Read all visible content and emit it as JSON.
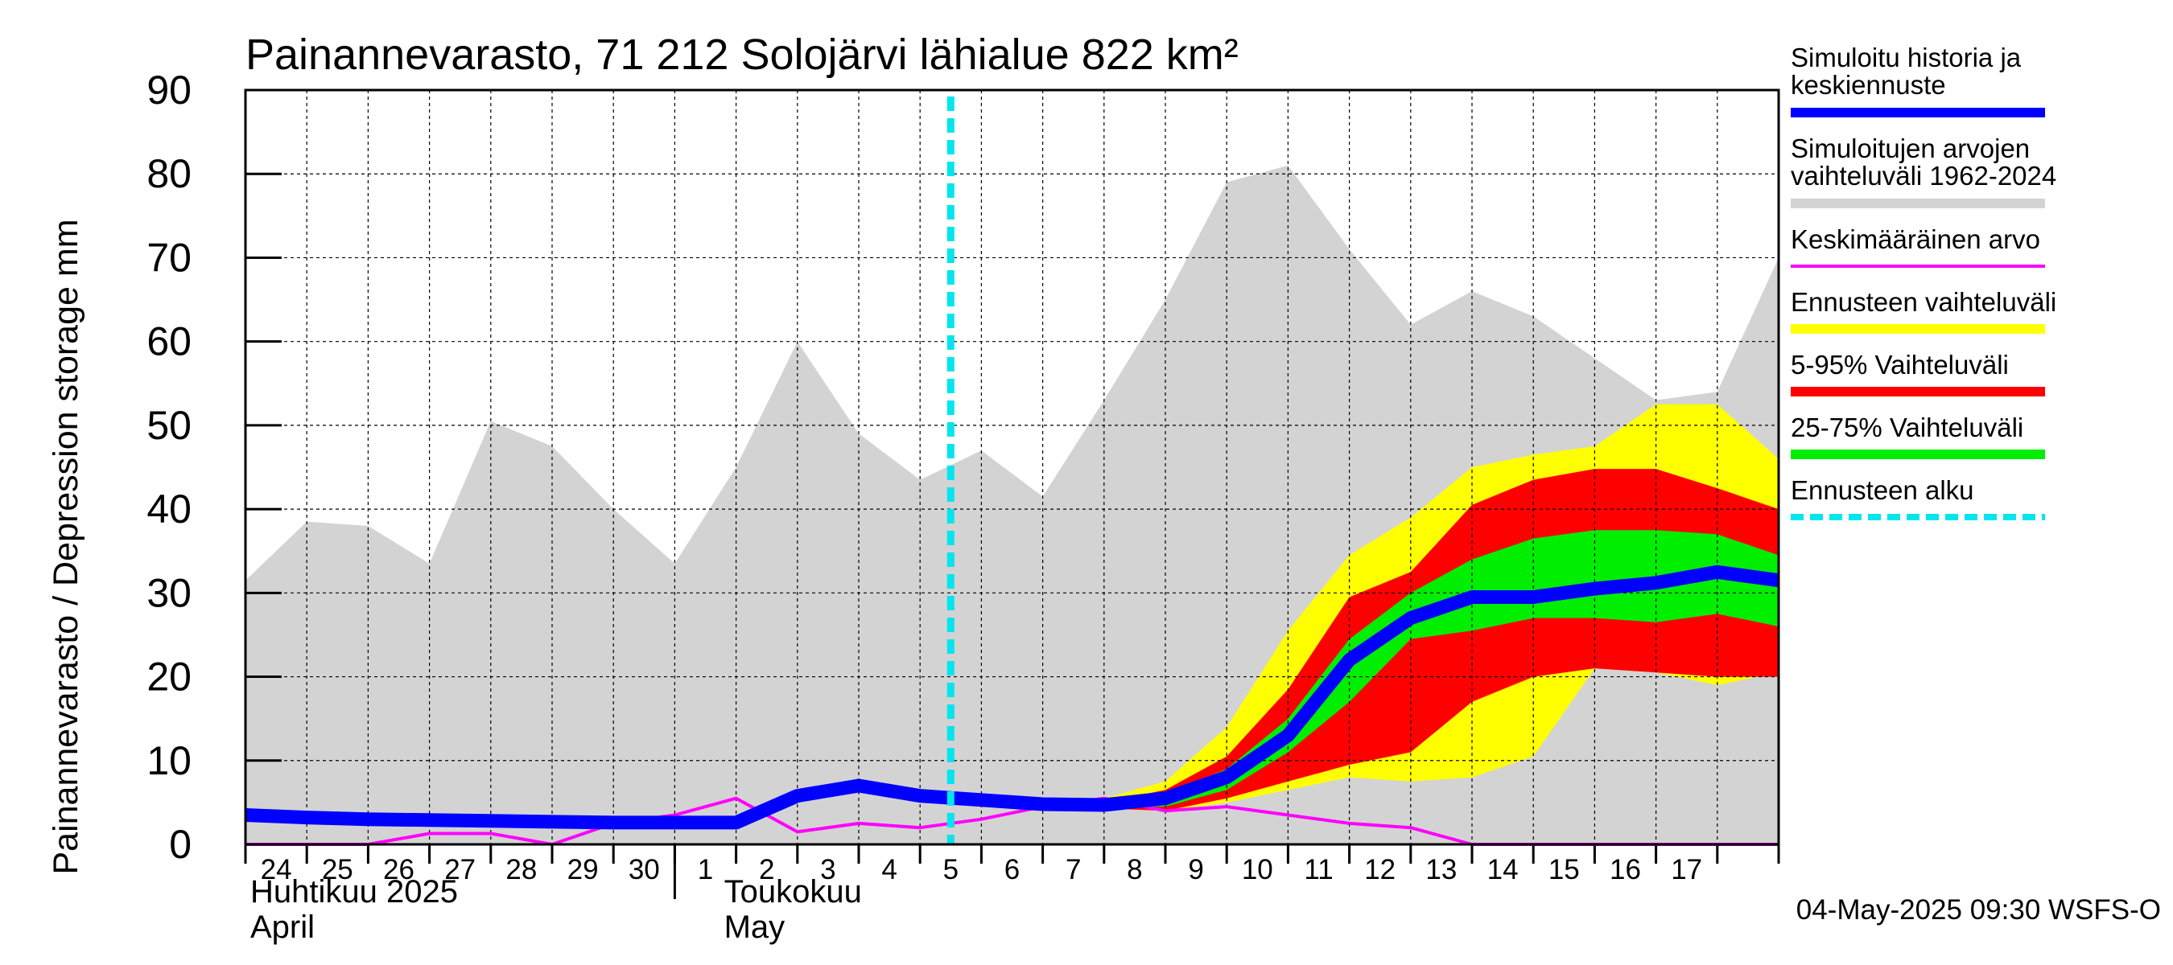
{
  "chart_data": {
    "type": "area",
    "title": "Painannevarasto, 71 212 Solojärvi lähialue 822 km²",
    "ylabel": "Painannevarasto / Depression storage    mm",
    "ylim": [
      0,
      90
    ],
    "yticks": [
      "0",
      "10",
      "20",
      "30",
      "40",
      "50",
      "60",
      "70",
      "80",
      "90"
    ],
    "x_tick_labels": [
      "24",
      "25",
      "26",
      "27",
      "28",
      "29",
      "30",
      "1",
      "2",
      "3",
      "4",
      "5",
      "6",
      "7",
      "8",
      "9",
      "10",
      "11",
      "12",
      "13",
      "14",
      "15",
      "16",
      "17"
    ],
    "month_labels": [
      {
        "fi": "Huhtikuu  2025",
        "en": "April"
      },
      {
        "fi": "Toukokuu",
        "en": "May"
      }
    ],
    "footer": "04-May-2025 09:30 WSFS-O",
    "grid": true,
    "legend_position": "right",
    "x_start": "2025-04-23",
    "x_end": "2025-05-18",
    "forecast_start": "2025-05-04",
    "x": [
      "2025-04-23",
      "2025-04-24",
      "2025-04-25",
      "2025-04-26",
      "2025-04-27",
      "2025-04-28",
      "2025-04-29",
      "2025-04-30",
      "2025-05-01",
      "2025-05-02",
      "2025-05-03",
      "2025-05-04",
      "2025-05-05",
      "2025-05-06",
      "2025-05-07",
      "2025-05-08",
      "2025-05-09",
      "2025-05-10",
      "2025-05-11",
      "2025-05-12",
      "2025-05-13",
      "2025-05-14",
      "2025-05-15",
      "2025-05-16",
      "2025-05-17",
      "2025-05-18"
    ],
    "series": [
      {
        "name": "Simuloitujen arvojen vaihteluväli 1962-2024",
        "kind": "band",
        "color": "#d3d3d3",
        "lower": [
          0,
          0,
          0,
          0,
          0,
          0,
          0,
          0,
          0,
          0,
          0,
          0,
          0,
          0,
          0,
          0,
          0,
          0,
          0,
          0,
          0,
          0,
          0,
          0,
          0,
          0
        ],
        "upper": [
          31.5,
          38.5,
          38,
          33.5,
          50.5,
          47.5,
          40,
          33.5,
          45,
          60,
          49,
          43.5,
          47,
          41.5,
          53,
          65,
          79,
          81,
          71,
          62,
          66,
          63,
          58,
          53,
          54,
          70
        ]
      },
      {
        "name": "Ennusteen vaihteluväli",
        "kind": "band",
        "color": "#ffff00",
        "lower": [
          null,
          null,
          null,
          null,
          null,
          null,
          null,
          null,
          null,
          null,
          null,
          5.5,
          4.8,
          4.3,
          4.3,
          4.0,
          5.0,
          6.5,
          8.0,
          7.5,
          8.0,
          10.5,
          21.0,
          20.5,
          19.0,
          20.5
        ],
        "upper": [
          null,
          null,
          null,
          null,
          null,
          null,
          null,
          null,
          null,
          null,
          null,
          5.5,
          4.8,
          4.6,
          5.5,
          7.5,
          14.0,
          25.5,
          34.5,
          39.0,
          45.0,
          46.5,
          47.5,
          52.5,
          52.5,
          46.0
        ]
      },
      {
        "name": "5-95% Vaihteluväli",
        "kind": "band",
        "color": "#ff0000",
        "lower": [
          null,
          null,
          null,
          null,
          null,
          null,
          null,
          null,
          null,
          null,
          null,
          5.5,
          4.8,
          4.3,
          4.3,
          4.0,
          5.5,
          7.5,
          9.5,
          11.0,
          17.0,
          20.0,
          21.0,
          20.5,
          20.0,
          20.0
        ],
        "upper": [
          null,
          null,
          null,
          null,
          null,
          null,
          null,
          null,
          null,
          null,
          null,
          5.5,
          4.8,
          4.5,
          5.0,
          6.5,
          10.5,
          18.5,
          29.5,
          32.5,
          40.5,
          43.5,
          44.8,
          44.8,
          42.5,
          40.0
        ]
      },
      {
        "name": "25-75% Vaihteluväli",
        "kind": "band",
        "color": "#00ee00",
        "lower": [
          null,
          null,
          null,
          null,
          null,
          null,
          null,
          null,
          null,
          null,
          null,
          5.5,
          4.8,
          4.3,
          4.4,
          4.5,
          6.5,
          11.0,
          17.0,
          24.5,
          25.5,
          27.0,
          27.0,
          26.5,
          27.5,
          26.0
        ],
        "upper": [
          null,
          null,
          null,
          null,
          null,
          null,
          null,
          null,
          null,
          null,
          null,
          5.5,
          4.8,
          4.4,
          4.8,
          6.0,
          9.0,
          15.0,
          24.5,
          30.0,
          34.0,
          36.5,
          37.5,
          37.5,
          37.0,
          34.5
        ]
      },
      {
        "name": "Keskimääräinen arvo",
        "kind": "line",
        "color": "#ff00ff",
        "values": [
          0,
          0,
          0,
          1.3,
          1.3,
          0,
          2.5,
          3.5,
          5.5,
          1.5,
          2.5,
          2.0,
          3.0,
          4.5,
          5.5,
          4.0,
          4.5,
          3.5,
          2.5,
          2.0,
          0,
          0,
          0,
          0,
          0,
          0
        ]
      },
      {
        "name": "Simuloitu historia ja keskiennuste",
        "kind": "line",
        "color": "#0000ff",
        "values": [
          3.5,
          3.2,
          3.0,
          2.9,
          2.8,
          2.7,
          2.6,
          2.6,
          2.6,
          5.8,
          7.0,
          5.8,
          5.3,
          4.8,
          4.7,
          5.5,
          8.0,
          13.0,
          22.0,
          27.0,
          29.5,
          29.5,
          30.5,
          31.2,
          32.5,
          31.5
        ]
      }
    ],
    "legend": [
      {
        "label": "Simuloitu historia ja keskiennuste",
        "color": "#0000ff",
        "style": "thick"
      },
      {
        "label": "Simuloitujen arvojen vaihteluväli 1962-2024",
        "color": "#d3d3d3",
        "style": "thick"
      },
      {
        "label": "Keskimääräinen arvo",
        "color": "#ff00ff",
        "style": "thin"
      },
      {
        "label": "Ennusteen vaihteluväli",
        "color": "#ffff00",
        "style": "thick"
      },
      {
        "label": "5-95% Vaihteluväli",
        "color": "#ff0000",
        "style": "thick"
      },
      {
        "label": "25-75% Vaihteluväli",
        "color": "#00ee00",
        "style": "thick"
      },
      {
        "label": "Ennusteen alku",
        "color": "#00e5ee",
        "style": "dashed"
      }
    ]
  }
}
